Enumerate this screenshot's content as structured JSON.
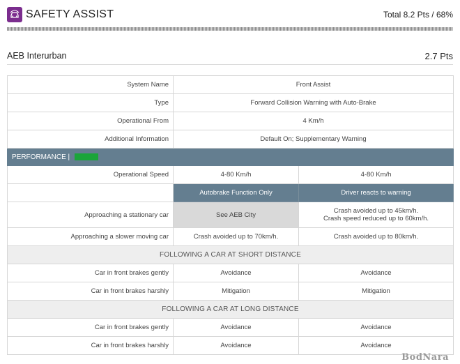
{
  "header": {
    "logo_icon": "car-safety-icon",
    "title": "SAFETY ASSIST",
    "total": "Total 8.2 Pts / 68%"
  },
  "section": {
    "title": "AEB Interurban",
    "points": "2.7 Pts"
  },
  "info_rows": [
    {
      "label": "System Name",
      "value": "Front Assist"
    },
    {
      "label": "Type",
      "value": "Forward Collision Warning with Auto-Brake"
    },
    {
      "label": "Operational From",
      "value": "4 Km/h"
    },
    {
      "label": "Additional Information",
      "value": "Default On; Supplementary Warning"
    }
  ],
  "performance": {
    "label": "PERFORMANCE |",
    "color": "#1aa53a"
  },
  "operational_speed": {
    "label": "Operational Speed",
    "autobrake": "4-80 Km/h",
    "driver": "4-80 Km/h"
  },
  "columns": {
    "autobrake": "Autobrake Function Only",
    "driver": "Driver reacts to warning"
  },
  "approach_rows": [
    {
      "label": "Approaching a stationary car",
      "autobrake": "See AEB City",
      "driver_line1": "Crash avoided up to 45km/h.",
      "driver_line2": "Crash speed reduced up to 60km/h."
    },
    {
      "label": "Approaching a slower moving car",
      "autobrake": "Crash avoided up to 70km/h.",
      "driver": "Crash avoided up to 80km/h."
    }
  ],
  "short_distance": {
    "title": "FOLLOWING A CAR AT SHORT DISTANCE",
    "rows": [
      {
        "label": "Car in front brakes gently",
        "autobrake": "Avoidance",
        "driver": "Avoidance"
      },
      {
        "label": "Car in front brakes harshly",
        "autobrake": "Mitigation",
        "driver": "Mitigation"
      }
    ]
  },
  "long_distance": {
    "title": "FOLLOWING A CAR AT LONG DISTANCE",
    "rows": [
      {
        "label": "Car in front brakes gently",
        "autobrake": "Avoidance",
        "driver": "Avoidance"
      },
      {
        "label": "Car in front brakes harshly",
        "autobrake": "Avoidance",
        "driver": "Avoidance"
      }
    ]
  },
  "watermark": "BodNara",
  "colors": {
    "brand": "#7b2d8e",
    "header_bar": "#647e90",
    "performance_bar": "#1aa53a"
  }
}
